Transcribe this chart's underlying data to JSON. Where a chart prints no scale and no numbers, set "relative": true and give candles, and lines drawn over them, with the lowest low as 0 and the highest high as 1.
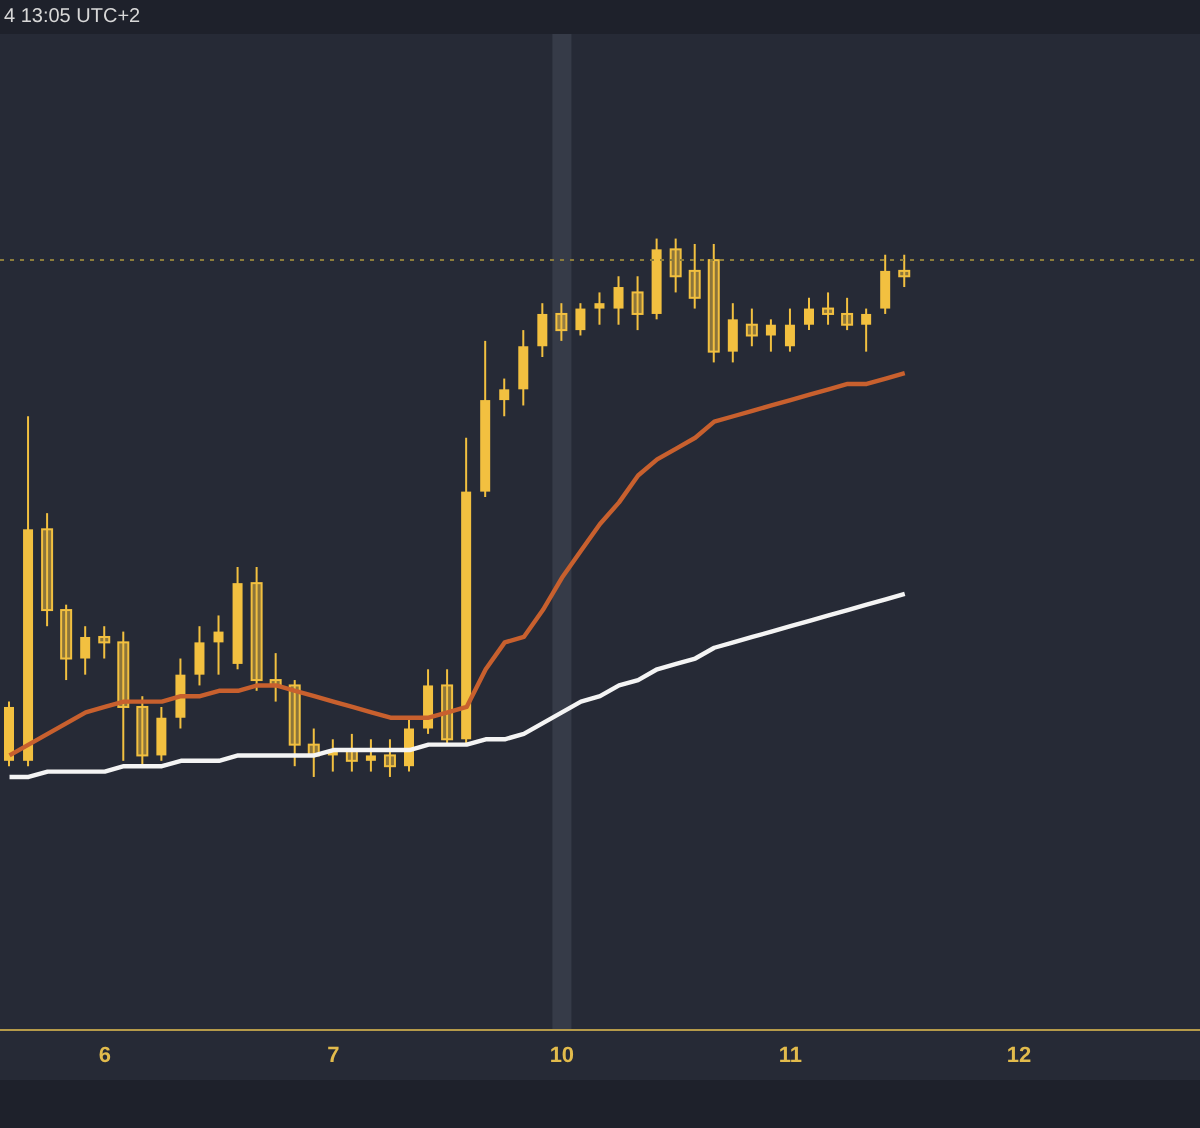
{
  "chart_data": {
    "type": "candlestick",
    "relative": true,
    "annotations": [
      "4 13:05 UTC+2"
    ],
    "categories": [
      null,
      null,
      null,
      null,
      null,
      "6",
      null,
      null,
      null,
      null,
      null,
      null,
      null,
      null,
      null,
      null,
      null,
      "7",
      null,
      null,
      null,
      null,
      null,
      null,
      null,
      null,
      null,
      null,
      null,
      "10",
      null,
      null,
      null,
      null,
      null,
      null,
      null,
      null,
      null,
      null,
      null,
      "11",
      null,
      null,
      null,
      null,
      null,
      null,
      null,
      null,
      null,
      null,
      null,
      "12",
      null,
      null,
      null,
      null,
      null,
      null,
      null,
      null,
      null
    ],
    "bands": [
      {
        "axis": "x",
        "from": "10",
        "to": "10",
        "color": "#363b48"
      }
    ],
    "ref_lines": [
      {
        "axis": "y",
        "value": 0.96,
        "color": "#8c7d3c",
        "line_style": "dotted"
      }
    ],
    "series": [
      {
        "color": "#f2c040",
        "ohlc": [
          [
            0.03,
            0.14,
            0.02,
            0.13
          ],
          [
            0.03,
            0.67,
            0.02,
            0.46
          ],
          [
            0.46,
            0.49,
            0.28,
            0.31
          ],
          [
            0.31,
            0.32,
            0.18,
            0.22
          ],
          [
            0.22,
            0.28,
            0.19,
            0.26
          ],
          [
            0.26,
            0.28,
            0.22,
            0.25
          ],
          [
            0.25,
            0.27,
            0.03,
            0.13
          ],
          [
            0.13,
            0.15,
            0.02,
            0.04
          ],
          [
            0.04,
            0.13,
            0.03,
            0.11
          ],
          [
            0.11,
            0.22,
            0.09,
            0.19
          ],
          [
            0.19,
            0.28,
            0.17,
            0.25
          ],
          [
            0.25,
            0.3,
            0.19,
            0.27
          ],
          [
            0.21,
            0.39,
            0.2,
            0.36
          ],
          [
            0.36,
            0.39,
            0.16,
            0.18
          ],
          [
            0.18,
            0.23,
            0.14,
            0.17
          ],
          [
            0.17,
            0.18,
            0.02,
            0.06
          ],
          [
            0.06,
            0.09,
            0,
            0.04
          ],
          [
            0.04,
            0.07,
            0.01,
            0.05
          ],
          [
            0.05,
            0.08,
            0.01,
            0.03
          ],
          [
            0.03,
            0.07,
            0.01,
            0.04
          ],
          [
            0.04,
            0.07,
            0,
            0.02
          ],
          [
            0.02,
            0.11,
            0.01,
            0.09
          ],
          [
            0.09,
            0.2,
            0.08,
            0.17
          ],
          [
            0.17,
            0.2,
            0.06,
            0.07
          ],
          [
            0.07,
            0.63,
            0.06,
            0.53
          ],
          [
            0.53,
            0.81,
            0.52,
            0.7
          ],
          [
            0.7,
            0.74,
            0.67,
            0.72
          ],
          [
            0.72,
            0.83,
            0.69,
            0.8
          ],
          [
            0.8,
            0.88,
            0.78,
            0.86
          ],
          [
            0.86,
            0.88,
            0.81,
            0.83
          ],
          [
            0.83,
            0.88,
            0.82,
            0.87
          ],
          [
            0.87,
            0.9,
            0.84,
            0.88
          ],
          [
            0.87,
            0.93,
            0.84,
            0.91
          ],
          [
            0.9,
            0.93,
            0.83,
            0.86
          ],
          [
            0.86,
            1,
            0.85,
            0.98
          ],
          [
            0.98,
            1,
            0.9,
            0.93
          ],
          [
            0.94,
            0.99,
            0.87,
            0.89
          ],
          [
            0.96,
            0.99,
            0.77,
            0.79
          ],
          [
            0.79,
            0.88,
            0.77,
            0.85
          ],
          [
            0.84,
            0.87,
            0.8,
            0.82
          ],
          [
            0.82,
            0.85,
            0.79,
            0.84
          ],
          [
            0.8,
            0.87,
            0.79,
            0.84
          ],
          [
            0.84,
            0.89,
            0.83,
            0.87
          ],
          [
            0.87,
            0.9,
            0.84,
            0.86
          ],
          [
            0.86,
            0.89,
            0.83,
            0.84
          ],
          [
            0.84,
            0.87,
            0.79,
            0.86
          ],
          [
            0.87,
            0.97,
            0.86,
            0.94
          ],
          [
            0.94,
            0.97,
            0.91,
            0.93
          ],
          null,
          null,
          null,
          null,
          null,
          null,
          null,
          null,
          null,
          null,
          null,
          null,
          null,
          null,
          null
        ]
      },
      {
        "type": "line",
        "color": "#c8602e",
        "values": [
          0.04,
          0.06,
          0.08,
          0.1,
          0.12,
          0.13,
          0.14,
          0.14,
          0.14,
          0.15,
          0.15,
          0.16,
          0.16,
          0.17,
          0.17,
          0.16,
          0.15,
          0.14,
          0.13,
          0.12,
          0.11,
          0.11,
          0.11,
          0.12,
          0.13,
          0.2,
          0.25,
          0.26,
          0.31,
          0.37,
          0.42,
          0.47,
          0.51,
          0.56,
          0.59,
          0.61,
          0.63,
          0.66,
          0.67,
          0.68,
          0.69,
          0.7,
          0.71,
          0.72,
          0.73,
          0.73,
          0.74,
          0.75,
          null,
          null,
          null,
          null,
          null,
          null,
          null,
          null,
          null,
          null,
          null,
          null,
          null,
          null,
          null
        ]
      },
      {
        "type": "line",
        "color": "#f4f4f4",
        "values": [
          0,
          0,
          0.01,
          0.01,
          0.01,
          0.01,
          0.02,
          0.02,
          0.02,
          0.03,
          0.03,
          0.03,
          0.04,
          0.04,
          0.04,
          0.04,
          0.04,
          0.05,
          0.05,
          0.05,
          0.05,
          0.05,
          0.06,
          0.06,
          0.06,
          0.07,
          0.07,
          0.08,
          0.1,
          0.12,
          0.14,
          0.15,
          0.17,
          0.18,
          0.2,
          0.21,
          0.22,
          0.24,
          0.25,
          0.26,
          0.27,
          0.28,
          0.29,
          0.3,
          0.31,
          0.32,
          0.33,
          0.34,
          null,
          null,
          null,
          null,
          null,
          null,
          null,
          null,
          null,
          null,
          null,
          null,
          null,
          null,
          null
        ]
      }
    ]
  }
}
